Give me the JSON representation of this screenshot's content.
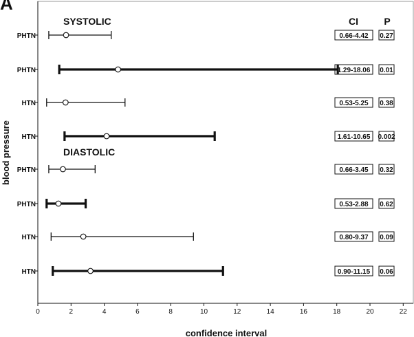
{
  "panel_label": "A",
  "chart_data": {
    "type": "forest",
    "xlabel": "confidence interval",
    "ylabel": "blood pressure",
    "xlim": [
      0,
      23
    ],
    "xticks": [
      0,
      2,
      4,
      6,
      8,
      10,
      12,
      14,
      16,
      18,
      20,
      22
    ],
    "grid": false,
    "column_headers": {
      "ci": "CI",
      "p": "P"
    },
    "groups": [
      {
        "label": "SYSTOLIC",
        "before_row": 0
      },
      {
        "label": "DIASTOLIC",
        "before_row": 4
      }
    ],
    "rows": [
      {
        "label": "PHTN",
        "low": 0.66,
        "high": 4.42,
        "point": 1.7,
        "bold": false,
        "ci_text": "0.66-4.42",
        "p_text": "0.27"
      },
      {
        "label": "PHTN",
        "low": 1.29,
        "high": 18.06,
        "point": 4.83,
        "bold": true,
        "ci_text": "1.29-18.06",
        "p_text": "0.01"
      },
      {
        "label": "HTN",
        "low": 0.53,
        "high": 5.25,
        "point": 1.67,
        "bold": false,
        "ci_text": "0.53-5.25",
        "p_text": "0.38"
      },
      {
        "label": "HTN",
        "low": 1.61,
        "high": 10.65,
        "point": 4.14,
        "bold": true,
        "ci_text": "1.61-10.65",
        "p_text": "0.002"
      },
      {
        "label": "PHTN",
        "low": 0.66,
        "high": 3.45,
        "point": 1.51,
        "bold": false,
        "ci_text": "0.66-3.45",
        "p_text": "0.32"
      },
      {
        "label": "PHTN",
        "low": 0.53,
        "high": 2.88,
        "point": 1.24,
        "bold": true,
        "ci_text": "0.53-2.88",
        "p_text": "0.62"
      },
      {
        "label": "HTN",
        "low": 0.8,
        "high": 9.37,
        "point": 2.74,
        "bold": false,
        "ci_text": "0.80-9.37",
        "p_text": "0.09"
      },
      {
        "label": "HTN",
        "low": 0.9,
        "high": 11.15,
        "point": 3.17,
        "bold": true,
        "ci_text": "0.90-11.15",
        "p_text": "0.06"
      }
    ]
  }
}
